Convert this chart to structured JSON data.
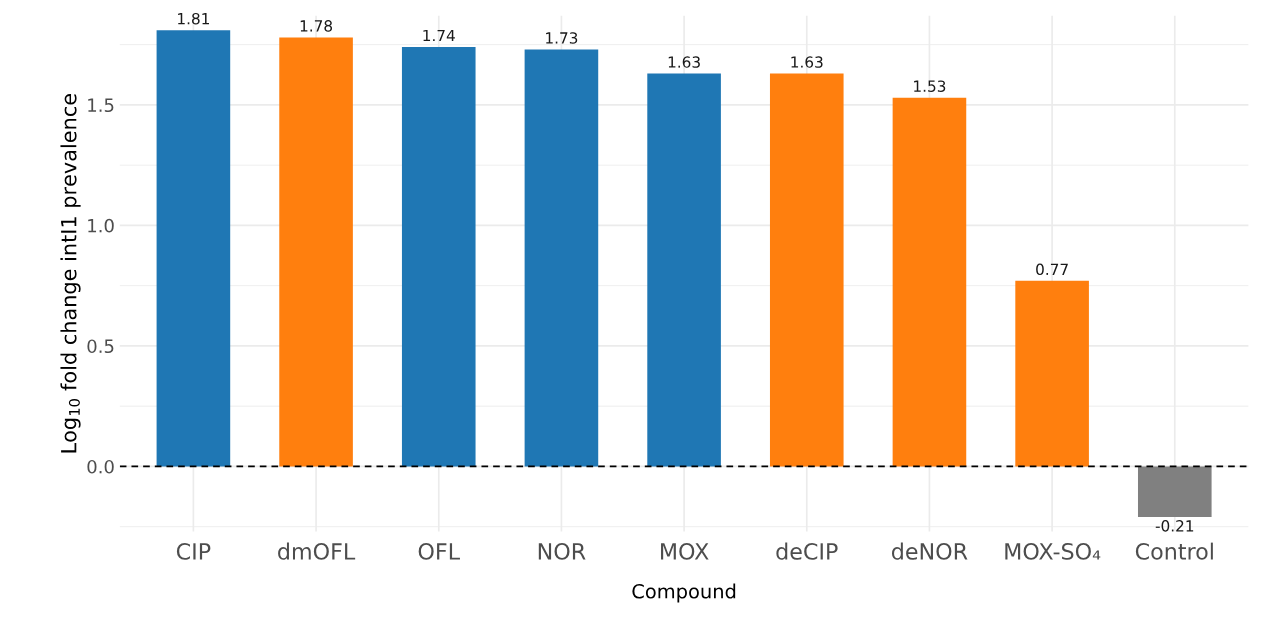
{
  "chart_data": {
    "type": "bar",
    "xlabel": "Compound",
    "ylabel": "Log$_{10}$ fold change intI1 prevalence",
    "categories": [
      "CIP",
      "dmOFL",
      "OFL",
      "NOR",
      "MOX",
      "deCIP",
      "deNOR",
      "MOX-SO₄",
      "Control"
    ],
    "values": [
      1.81,
      1.78,
      1.74,
      1.73,
      1.63,
      1.63,
      1.53,
      0.77,
      -0.21
    ],
    "colors": [
      "#1f77b4",
      "#ff7f0e",
      "#1f77b4",
      "#1f77b4",
      "#1f77b4",
      "#ff7f0e",
      "#ff7f0e",
      "#ff7f0e",
      "#808080"
    ],
    "ylim": [
      -0.27,
      1.87
    ],
    "yticks": [
      {
        "value": 0,
        "label": "0.0"
      },
      0.5,
      {
        "value": 1,
        "label": "1.0"
      },
      1.5
    ],
    "ref_lines": [
      {
        "axis": "y",
        "value": 0,
        "label": null,
        "color": "#000000",
        "line_style": "dashed"
      }
    ],
    "data_labels": true,
    "grid": true
  }
}
